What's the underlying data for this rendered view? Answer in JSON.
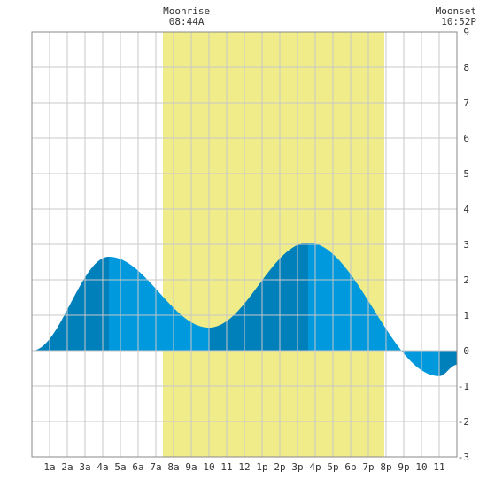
{
  "colors": {
    "daylight": "#f0ec8a",
    "tide_dark": "#0080bb",
    "tide_light": "#0099dd",
    "grid": "#c8c8c8",
    "frame": "#888888",
    "background": "#ffffff"
  },
  "moon": {
    "rise_label": "Moonrise",
    "rise_time": "08:44A",
    "set_label": "Moonset",
    "set_time": "10:52P"
  },
  "chart_data": {
    "type": "area",
    "x_unit": "hour",
    "xlim": [
      0,
      24
    ],
    "ylim": [
      -3,
      9
    ],
    "grid": true,
    "y_ticks": [
      "-3",
      "-2",
      "-1",
      "0",
      "1",
      "2",
      "3",
      "4",
      "5",
      "6",
      "7",
      "8",
      "9"
    ],
    "x_ticks": [
      {
        "x": 1,
        "label": "1a"
      },
      {
        "x": 2,
        "label": "2a"
      },
      {
        "x": 3,
        "label": "3a"
      },
      {
        "x": 4,
        "label": "4a"
      },
      {
        "x": 5,
        "label": "5a"
      },
      {
        "x": 6,
        "label": "6a"
      },
      {
        "x": 7,
        "label": "7a"
      },
      {
        "x": 8,
        "label": "8a"
      },
      {
        "x": 9,
        "label": "9a"
      },
      {
        "x": 10,
        "label": "10"
      },
      {
        "x": 11,
        "label": "11"
      },
      {
        "x": 12,
        "label": "12"
      },
      {
        "x": 13,
        "label": "1p"
      },
      {
        "x": 14,
        "label": "2p"
      },
      {
        "x": 15,
        "label": "3p"
      },
      {
        "x": 16,
        "label": "4p"
      },
      {
        "x": 17,
        "label": "5p"
      },
      {
        "x": 18,
        "label": "6p"
      },
      {
        "x": 19,
        "label": "7p"
      },
      {
        "x": 20,
        "label": "8p"
      },
      {
        "x": 21,
        "label": "9p"
      },
      {
        "x": 22,
        "label": "10"
      },
      {
        "x": 23,
        "label": "11"
      }
    ],
    "daylight": [
      7.4,
      19.9
    ],
    "moonrise_hour": 8.73,
    "moonset_hour": 22.87,
    "tide_extremes": [
      {
        "x": 0.0,
        "y": 0.0
      },
      {
        "x": 4.35,
        "y": 2.65
      },
      {
        "x": 10.0,
        "y": 0.65
      },
      {
        "x": 15.6,
        "y": 3.05
      },
      {
        "x": 23.0,
        "y": -0.72
      }
    ],
    "end_point": {
      "x": 24.0,
      "y": -0.4
    }
  }
}
